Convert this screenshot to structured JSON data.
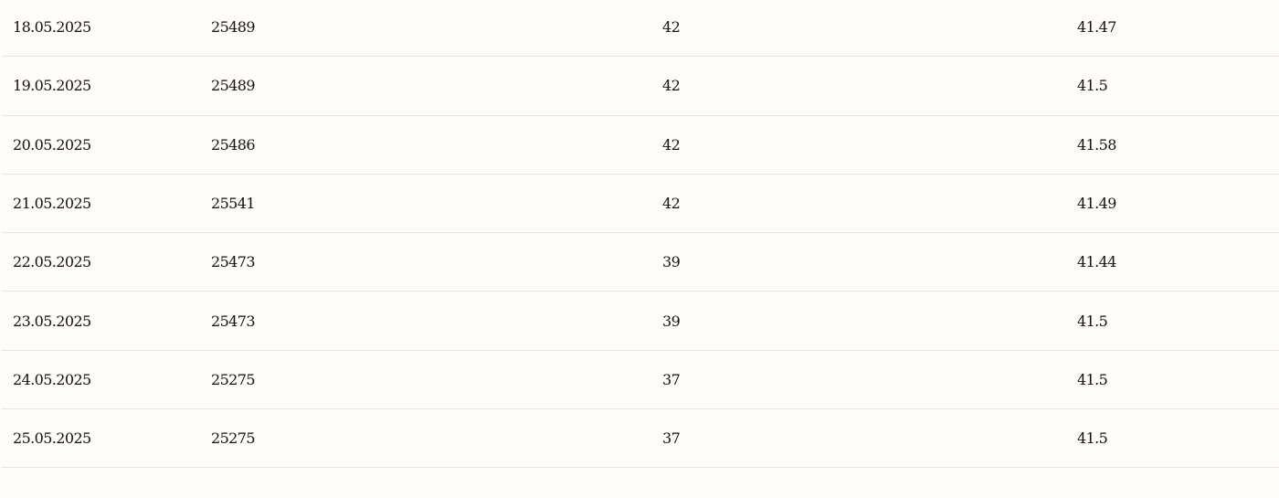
{
  "table": {
    "rows": [
      [
        "18.05.2025",
        "25489",
        "42",
        "41.47"
      ],
      [
        "19.05.2025",
        "25489",
        "42",
        "41.5"
      ],
      [
        "20.05.2025",
        "25486",
        "42",
        "41.58"
      ],
      [
        "21.05.2025",
        "25541",
        "42",
        "41.49"
      ],
      [
        "22.05.2025",
        "25473",
        "39",
        "41.44"
      ],
      [
        "23.05.2025",
        "25473",
        "39",
        "41.5"
      ],
      [
        "24.05.2025",
        "25275",
        "37",
        "41.5"
      ],
      [
        "25.05.2025",
        "25275",
        "37",
        "41.5"
      ]
    ]
  }
}
